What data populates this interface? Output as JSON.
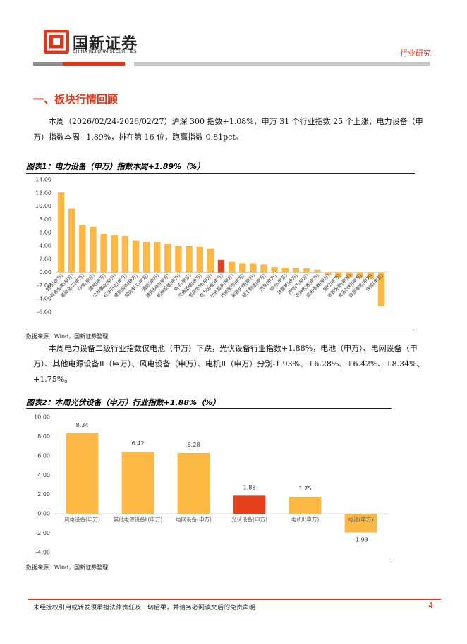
{
  "header": {
    "brand": "国新证券",
    "brand_en": "CHINA REFORM SECURITIES",
    "section_tag": "行业研究"
  },
  "section_title": "一、板块行情回顾",
  "paragraphs": [
    "本周（2026/02/24-2026/02/27）沪深 300 指数+1.08%，申万 31 个行业指数 25 个上涨，电力设备（申万）指数本周+1.89%，排在第 16 位，跑赢指数 0.81pct。",
    "本周电力设备二级行业指数仅电池（申万）下跌，光伏设备行业指数+1.88%，电池（申万）、电网设备（申万）、其他电源设备Ⅱ（申万）、风电设备（申万）、电机Ⅱ（申万）分别-1.93%、+6.28%、+6.42%、+8.34%、+1.75%。"
  ],
  "sources": [
    "数据来源：Wind，国新证券整理",
    "数据来源：Wind，国新证券整理"
  ],
  "footer": {
    "disclaimer": "未经授权引用或转发须承担法律责任及一切后果，并请务必阅读文后的免责声明",
    "page": "4"
  },
  "chart_data": [
    {
      "type": "bar",
      "title": "图表1：电力设备（申万）指数本周+1.89%（%）",
      "categories": [
        "钢铁(申万)",
        "有色金属(申万)",
        "基础化工(申万)",
        "环保(申万)",
        "煤炭(申万)",
        "公用事业(申万)",
        "石油石化(申万)",
        "建筑装饰(申万)",
        "国防军工(申万)",
        "通信(申万)",
        "建筑材料(申万)",
        "机械设备(申万)",
        "电子(申万)",
        "交通运输(申万)",
        "医药生物(申万)",
        "电力设备(申万)",
        "社会服务(申万)",
        "纺织服饰(申万)",
        "美容护理(申万)",
        "轻工制造(申万)",
        "汽车(申万)",
        "综合(申万)",
        "计算机(申万)",
        "房地产(申万)",
        "农林牧渔(申万)",
        "家用电器(申万)",
        "银行(申万)",
        "非银金融(申万)",
        "食品饮料(申万)",
        "商贸零售(申万)",
        "传媒(申万)"
      ],
      "values": [
        12.1,
        9.7,
        7.1,
        6.9,
        5.8,
        5.6,
        5.5,
        4.8,
        4.6,
        4.6,
        4.3,
        4.0,
        4.0,
        3.9,
        3.6,
        1.89,
        1.6,
        1.4,
        1.4,
        1.2,
        0.8,
        0.7,
        0.6,
        0.6,
        0.4,
        -0.4,
        -0.7,
        -0.8,
        -0.8,
        -1.0,
        -5.1
      ],
      "colors": [
        "#fbb845",
        "#fbb845",
        "#fbb845",
        "#fbb845",
        "#fbb845",
        "#fbb845",
        "#fbb845",
        "#fbb845",
        "#fbb845",
        "#fbb845",
        "#fbb845",
        "#fbb845",
        "#fbb845",
        "#fbb845",
        "#fbb845",
        "#e4401b",
        "#fbb845",
        "#fbb845",
        "#fbb845",
        "#fbb845",
        "#fbb845",
        "#fbb845",
        "#fbb845",
        "#fbb845",
        "#fbb845",
        "#fbb845",
        "#fbb845",
        "#fbb845",
        "#fbb845",
        "#fbb845",
        "#fbb845"
      ],
      "ylim": [
        -6,
        14
      ],
      "yticks": [
        {
          "value": 14,
          "label": "14.00"
        },
        {
          "value": 12,
          "label": "12.00"
        },
        {
          "value": 10,
          "label": "10.00"
        },
        {
          "value": 8,
          "label": "8.00"
        },
        {
          "value": 6,
          "label": "6.00"
        },
        {
          "value": 4,
          "label": "4.00"
        },
        {
          "value": 2,
          "label": "2.00"
        },
        {
          "value": 0,
          "label": "0.00"
        },
        {
          "value": -2,
          "label": "-2.00"
        },
        {
          "value": -4,
          "label": "-4.00"
        },
        {
          "value": -6,
          "label": "-6.00"
        }
      ]
    },
    {
      "type": "bar",
      "title": "图表2：本周光伏设备（申万）行业指数+1.88%（%）",
      "categories": [
        "风电设备(申万)",
        "其他电源设备Ⅱ(申万)",
        "电网设备(申万)",
        "光伏设备(申万)",
        "电机Ⅱ(申万)",
        "电池(申万)"
      ],
      "values": [
        8.34,
        6.42,
        6.28,
        1.88,
        1.75,
        -1.93
      ],
      "colors": [
        "#fbb845",
        "#fbb845",
        "#fbb845",
        "#e4401b",
        "#fbb845",
        "#fbb845"
      ],
      "ylim": [
        -4,
        10
      ],
      "yticks": [
        {
          "value": 10,
          "label": "10.00"
        },
        {
          "value": 8,
          "label": "8.00"
        },
        {
          "value": 6,
          "label": "6.00"
        },
        {
          "value": 4,
          "label": "4.00"
        },
        {
          "value": 2,
          "label": "2.00"
        },
        {
          "value": 0,
          "label": "0.00"
        },
        {
          "value": -2,
          "label": "-2.00"
        },
        {
          "value": -4,
          "label": "-4.00"
        }
      ]
    }
  ]
}
